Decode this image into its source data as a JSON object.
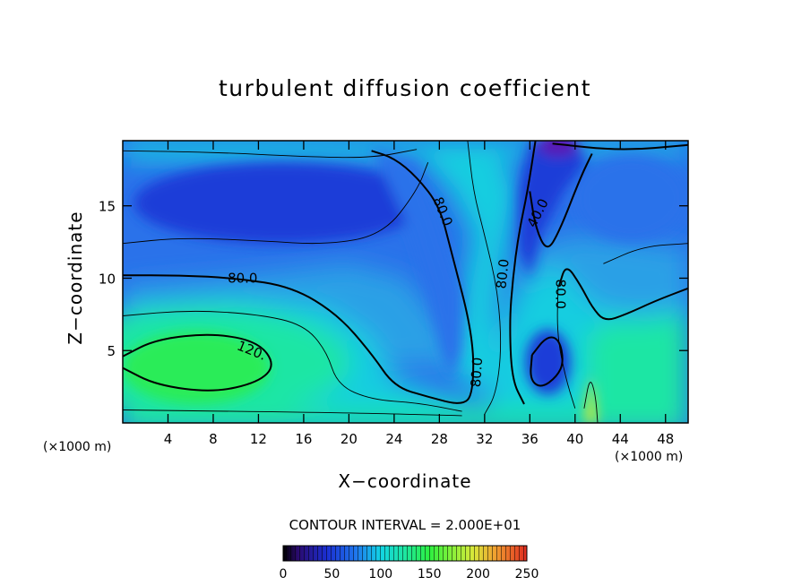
{
  "chart_data": {
    "type": "contour",
    "title": "turbulent diffusion coefficient",
    "xlabel": "X−coordinate",
    "ylabel": "Z−coordinate",
    "x_unit_label": "(×1000 m)",
    "xlim": [
      0,
      50
    ],
    "ylim": [
      0,
      19.5
    ],
    "x_ticks": [
      4,
      8,
      12,
      16,
      20,
      24,
      28,
      32,
      36,
      40,
      44,
      48
    ],
    "y_ticks": [
      5,
      10,
      15
    ],
    "contour_interval_text": "CONTOUR INTERVAL = 2.000E+01",
    "contour_interval": 20,
    "contour_labels": [
      {
        "text": "80.0",
        "x": 10.6,
        "y": 10.0,
        "rotate": 0
      },
      {
        "text": "120.",
        "x": 11.4,
        "y": 5.0,
        "rotate": 22
      },
      {
        "text": "80.0",
        "x": 28.3,
        "y": 14.6,
        "rotate": 68
      },
      {
        "text": "80.0",
        "x": 31.3,
        "y": 3.5,
        "rotate": -86
      },
      {
        "text": "80.0",
        "x": 33.6,
        "y": 10.3,
        "rotate": -84
      },
      {
        "text": "40.0",
        "x": 36.7,
        "y": 14.5,
        "rotate": -63
      },
      {
        "text": "80.0",
        "x": 38.7,
        "y": 8.9,
        "rotate": 90
      }
    ],
    "colorbar": {
      "range": [
        0,
        250
      ],
      "ticks": [
        0,
        50,
        100,
        150,
        200,
        250
      ],
      "tick_labels": [
        "0",
        "50",
        "100",
        "150",
        "200",
        "250"
      ]
    },
    "colors": {
      "k_40": "#1d3cd8",
      "k_60": "#2a72ea",
      "k_80": "#2ba0e6",
      "k_100": "#14cde0",
      "k_120": "#1ee6a4",
      "k_135": "#2cec58",
      "low_core": "#5a14b4",
      "high_core": "#c6e63a"
    }
  }
}
